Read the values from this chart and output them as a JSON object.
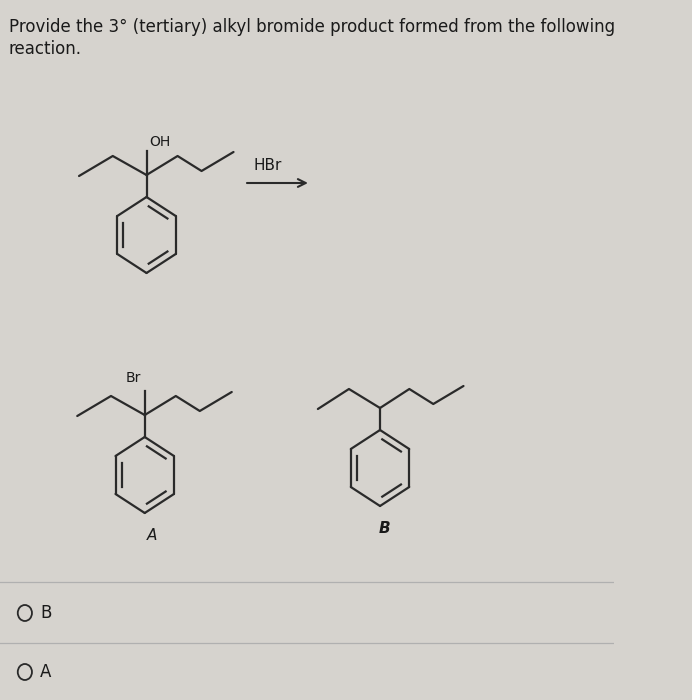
{
  "title_line1": "Provide the 3° (tertiary) alkyl bromide product formed from the following",
  "title_line2": "reaction.",
  "reagent": "HBr",
  "label_A": "A",
  "label_B": "B",
  "bg_color": "#d6d3ce",
  "line_color": "#2a2a2a",
  "text_color": "#1a1a1a",
  "sep_color": "#b0b0b0"
}
